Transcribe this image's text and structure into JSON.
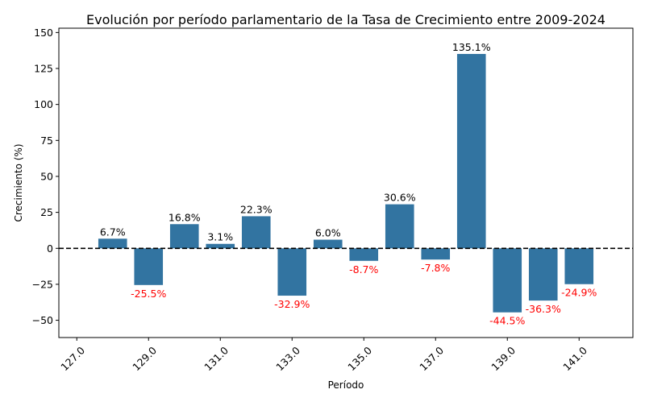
{
  "chart_data": {
    "type": "bar",
    "title": "Evolución por período parlamentario de la Tasa de Crecimiento entre 2009-2024",
    "xlabel": "Período",
    "ylabel": "Crecimiento (%)",
    "categories": [
      127.0,
      128.0,
      129.0,
      130.0,
      131.0,
      132.0,
      133.0,
      134.0,
      135.0,
      136.0,
      137.0,
      138.0,
      139.0,
      140.0,
      141.0,
      142.0
    ],
    "x_tick_labels": [
      "127.0",
      "129.0",
      "131.0",
      "133.0",
      "135.0",
      "137.0",
      "139.0",
      "141.0"
    ],
    "values": [
      null,
      6.7,
      -25.5,
      16.8,
      3.1,
      22.3,
      -32.9,
      6.0,
      -8.7,
      30.6,
      -7.8,
      135.1,
      -44.5,
      -36.3,
      -24.9,
      null
    ],
    "data_labels": [
      null,
      "6.7%",
      "-25.5%",
      "16.8%",
      "3.1%",
      "22.3%",
      "-32.9%",
      "6.0%",
      "-8.7%",
      "30.6%",
      "-7.8%",
      "135.1%",
      "-44.5%",
      "-36.3%",
      "-24.9%",
      null
    ],
    "ylim": [
      -62,
      153
    ],
    "y_ticks": [
      -50,
      -25,
      0,
      25,
      50,
      75,
      100,
      125,
      150
    ],
    "y_tick_labels": [
      "−50",
      "−25",
      "0",
      "25",
      "50",
      "75",
      "100",
      "125",
      "150"
    ],
    "reference_line": 0,
    "grid": false,
    "colors": {
      "bar": "#3274a1",
      "positive_label": "#000000",
      "negative_label": "#ff0000",
      "reference_line": "#000000"
    }
  }
}
